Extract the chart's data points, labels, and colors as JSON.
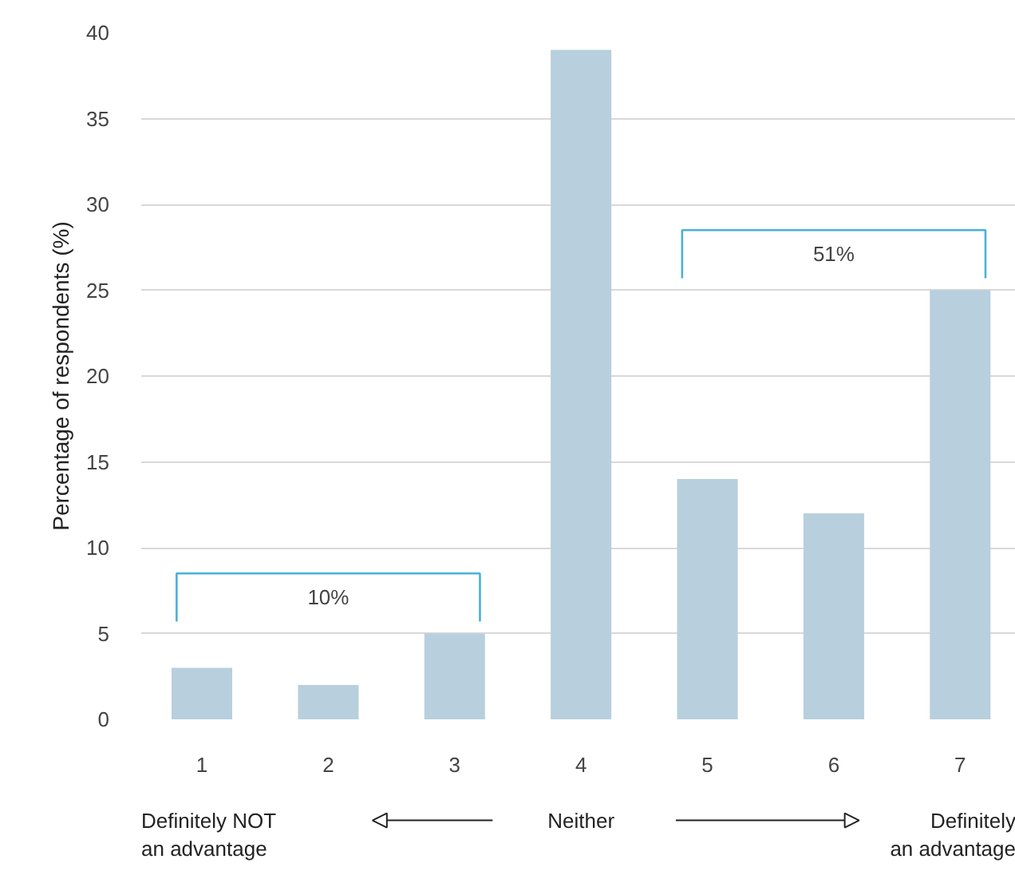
{
  "chart_data": {
    "type": "bar",
    "ylabel": "Percentage of respondents (%)",
    "categories": [
      "1",
      "2",
      "3",
      "4",
      "5",
      "6",
      "7"
    ],
    "values": [
      3,
      2,
      5,
      39,
      14,
      12,
      25
    ],
    "color": "#b8cfdd",
    "ylim": [
      0,
      40
    ],
    "yticks": [
      0,
      5,
      10,
      15,
      20,
      25,
      30,
      35,
      40
    ],
    "grid": "y",
    "annotations": [
      "10%",
      "51%",
      "Definitely NOT an advantage",
      "Neither",
      "Definitely an advantage"
    ]
  }
}
